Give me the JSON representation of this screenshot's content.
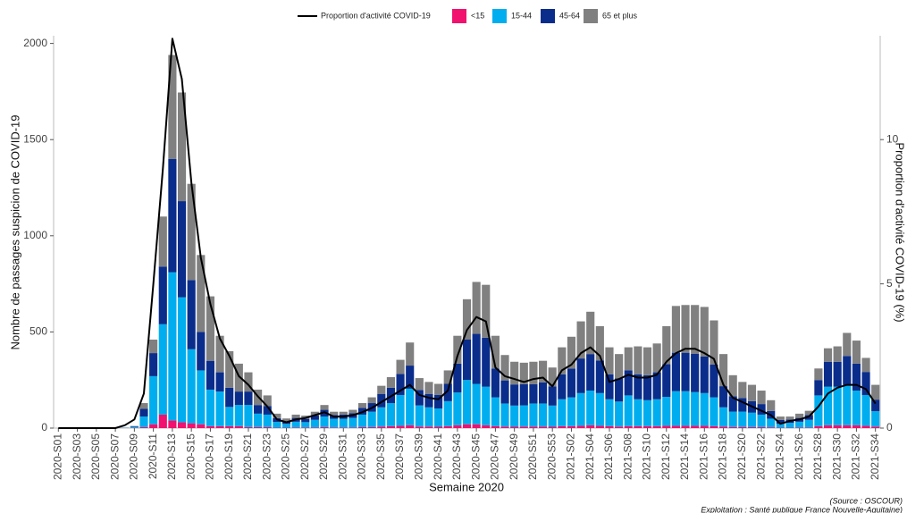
{
  "chart_data": {
    "type": "bar",
    "stacked": true,
    "x_label": "Semaine 2020",
    "y_label": "Nombre de passages suspicion de COVID-19",
    "y2_label": "Proportion d'activité COVID-19 (%)",
    "source": "(Source : OSCOUR)",
    "credit": "Exploitation : Santé publique France Nouvelle-Aquitaine)",
    "categories": [
      "2020-S01",
      null,
      "2020-S03",
      null,
      "2020-S05",
      null,
      "2020-S07",
      null,
      "2020-S09",
      null,
      "2020-S11",
      null,
      "2020-S13",
      null,
      "2020-S15",
      null,
      "2020-S17",
      null,
      "2020-S19",
      null,
      "2020-S21",
      null,
      "2020-S23",
      null,
      "2020-S25",
      null,
      "2020-S27",
      null,
      "2020-S29",
      null,
      "2020-S31",
      null,
      "2020-S33",
      null,
      "2020-S35",
      null,
      "2020-S37",
      null,
      "2020-S39",
      null,
      "2020-S41",
      null,
      "2020-S43",
      null,
      "2020-S45",
      null,
      "2020-S47",
      null,
      "2020-S49",
      null,
      "2020-S51",
      null,
      "2020-S53",
      null,
      "2021-S02",
      null,
      "2021-S04",
      null,
      "2021-S06",
      null,
      "2021-S08",
      null,
      "2021-S10",
      null,
      "2021-S12",
      null,
      "2021-S14",
      null,
      "2021-S16",
      null,
      "2021-S18",
      null,
      "2021-S20",
      null,
      "2021-S22",
      null,
      "2021-S24",
      null,
      "2021-S26",
      null,
      "2021-S28",
      null,
      "2021-S30",
      null,
      "2021-S32",
      null,
      "2021-S34"
    ],
    "series": [
      {
        "name": "Proportion d'activité COVID-19",
        "type": "line",
        "axis": "y2",
        "color": "#000000",
        "values": [
          0,
          0,
          0,
          0,
          0,
          0,
          0,
          0.1,
          0.3,
          1.2,
          5,
          9,
          13.5,
          12.1,
          8.5,
          5.9,
          4.3,
          3.1,
          2.5,
          1.8,
          1.5,
          1.1,
          0.75,
          0.3,
          0.2,
          0.3,
          0.35,
          0.45,
          0.55,
          0.4,
          0.4,
          0.45,
          0.55,
          0.7,
          0.9,
          1.1,
          1.3,
          1.5,
          1.15,
          1.05,
          1,
          1.3,
          2.5,
          3.4,
          3.85,
          3.7,
          2.1,
          1.8,
          1.7,
          1.6,
          1.7,
          1.75,
          1.45,
          2,
          2.2,
          2.6,
          2.8,
          2.5,
          1.6,
          1.7,
          1.85,
          1.75,
          1.75,
          1.85,
          2.3,
          2.6,
          2.75,
          2.75,
          2.6,
          2.4,
          1.5,
          1.05,
          0.9,
          0.75,
          0.6,
          0.45,
          0.15,
          0.25,
          0.3,
          0.4,
          0.75,
          1.2,
          1.4,
          1.5,
          1.5,
          1.35,
          0.85
        ]
      },
      {
        "name": "<15",
        "type": "bar",
        "color": "#f0126e",
        "values": [
          0,
          0,
          0,
          0,
          0,
          0,
          0,
          0,
          1,
          5,
          20,
          70,
          40,
          30,
          25,
          20,
          10,
          10,
          10,
          10,
          5,
          5,
          5,
          2,
          2,
          3,
          3,
          3,
          5,
          3,
          3,
          3,
          5,
          5,
          8,
          10,
          12,
          15,
          8,
          8,
          7,
          10,
          15,
          20,
          20,
          15,
          10,
          8,
          7,
          8,
          8,
          8,
          7,
          10,
          10,
          12,
          15,
          12,
          10,
          8,
          10,
          10,
          10,
          10,
          12,
          12,
          12,
          12,
          12,
          10,
          8,
          6,
          6,
          5,
          5,
          4,
          2,
          2,
          3,
          3,
          10,
          15,
          15,
          15,
          15,
          12,
          8
        ]
      },
      {
        "name": "15-44",
        "type": "bar",
        "color": "#00aeef",
        "values": [
          0,
          0,
          0,
          0,
          0,
          0,
          0,
          1,
          5,
          55,
          250,
          470,
          770,
          650,
          385,
          280,
          190,
          180,
          100,
          110,
          115,
          70,
          65,
          30,
          20,
          30,
          28,
          40,
          55,
          45,
          45,
          50,
          65,
          80,
          100,
          120,
          160,
          190,
          110,
          100,
          95,
          130,
          170,
          230,
          210,
          200,
          150,
          120,
          110,
          110,
          120,
          120,
          110,
          140,
          150,
          170,
          180,
          170,
          140,
          130,
          160,
          140,
          135,
          140,
          150,
          180,
          180,
          175,
          170,
          150,
          100,
          80,
          80,
          75,
          65,
          45,
          20,
          25,
          30,
          40,
          160,
          200,
          200,
          210,
          180,
          160,
          80
        ]
      },
      {
        "name": "45-64",
        "type": "bar",
        "color": "#0a2d8c",
        "values": [
          0,
          0,
          0,
          0,
          0,
          0,
          0,
          1,
          3,
          40,
          120,
          300,
          590,
          500,
          360,
          200,
          150,
          100,
          100,
          70,
          70,
          45,
          45,
          20,
          13,
          20,
          17,
          22,
          35,
          20,
          22,
          25,
          35,
          45,
          70,
          80,
          110,
          120,
          80,
          70,
          70,
          90,
          150,
          210,
          260,
          255,
          150,
          120,
          110,
          110,
          100,
          110,
          100,
          130,
          150,
          180,
          190,
          170,
          130,
          120,
          130,
          130,
          130,
          140,
          170,
          200,
          200,
          200,
          190,
          170,
          110,
          80,
          70,
          60,
          55,
          40,
          20,
          18,
          20,
          25,
          80,
          130,
          130,
          150,
          140,
          120,
          60
        ]
      },
      {
        "name": "65 et plus",
        "type": "bar",
        "color": "#808080",
        "values": [
          0,
          0,
          0,
          0,
          0,
          0,
          0,
          0,
          2,
          30,
          70,
          260,
          540,
          565,
          500,
          400,
          335,
          190,
          190,
          145,
          100,
          80,
          55,
          23,
          15,
          17,
          17,
          20,
          25,
          17,
          15,
          17,
          25,
          30,
          42,
          55,
          73,
          120,
          62,
          62,
          58,
          70,
          145,
          210,
          270,
          275,
          170,
          132,
          118,
          112,
          117,
          112,
          98,
          140,
          165,
          193,
          220,
          178,
          140,
          127,
          120,
          145,
          145,
          150,
          198,
          243,
          248,
          253,
          258,
          230,
          167,
          109,
          84,
          85,
          70,
          56,
          18,
          15,
          22,
          22,
          60,
          70,
          80,
          120,
          120,
          73,
          77
        ]
      }
    ],
    "ylim": [
      0,
      2040
    ],
    "yticks": [
      0,
      500,
      1000,
      1500,
      2000
    ],
    "y2lim": [
      0,
      13.6
    ],
    "y2ticks": [
      0,
      5,
      10
    ],
    "grid": false,
    "legend": "top"
  }
}
